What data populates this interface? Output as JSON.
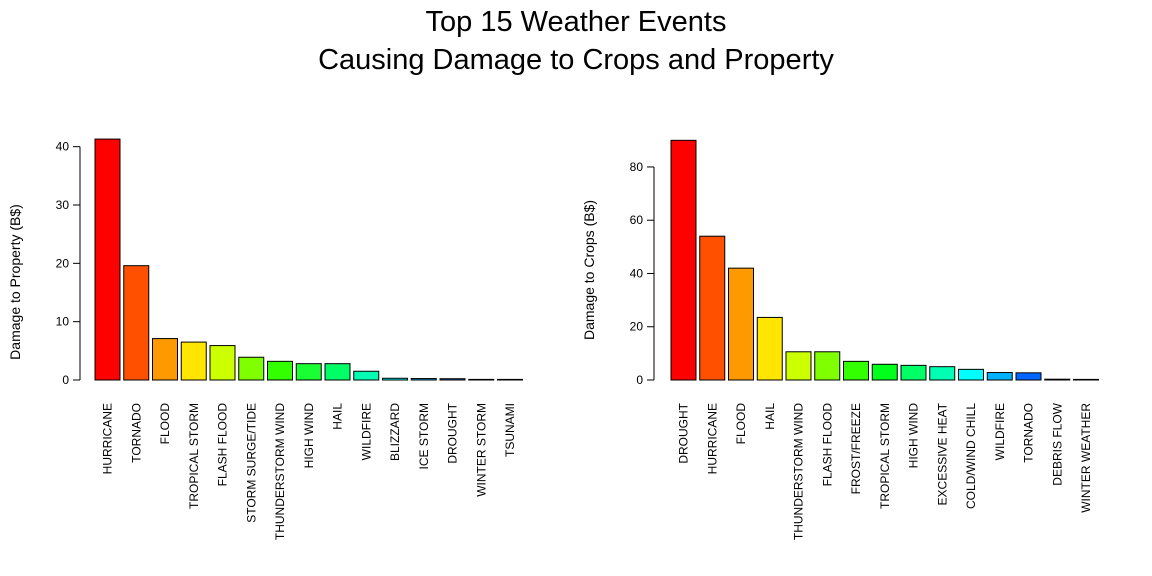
{
  "figure": {
    "title_line1": "Top 15 Weather Events",
    "title_line2": "Causing Damage to Crops and Property"
  },
  "chart_data": [
    {
      "type": "bar",
      "ylabel": "Damage to Property (B$)",
      "xlabel": "",
      "ylim": [
        0,
        42
      ],
      "yticks": [
        0,
        10,
        20,
        30,
        40
      ],
      "categories": [
        "HURRICANE",
        "TORNADO",
        "FLOOD",
        "TROPICAL STORM",
        "FLASH FLOOD",
        "STORM SURGE/TIDE",
        "THUNDERSTORM WIND",
        "HIGH WIND",
        "HAIL",
        "WILDFIRE",
        "BLIZZARD",
        "ICE STORM",
        "DROUGHT",
        "WINTER STORM",
        "TSUNAMI"
      ],
      "values": [
        41.3,
        19.6,
        7.1,
        6.5,
        5.9,
        3.9,
        3.2,
        2.8,
        2.8,
        1.5,
        0.3,
        0.25,
        0.22,
        0.1,
        0.05
      ],
      "colors": [
        "#FF0000",
        "#FF5000",
        "#FF9900",
        "#FFE500",
        "#CCFF00",
        "#80FF00",
        "#33FF00",
        "#1AFF33",
        "#00FF66",
        "#00FFB2",
        "#00FFFF",
        "#00B3FF",
        "#0066FF",
        "#001AFF",
        "#3300FF"
      ],
      "grid": false,
      "legend": "none"
    },
    {
      "type": "bar",
      "ylabel": "Damage to Crops (B$)",
      "xlabel": "",
      "ylim": [
        0,
        92
      ],
      "yticks": [
        0,
        20,
        40,
        60,
        80
      ],
      "categories": [
        "DROUGHT",
        "HURRICANE",
        "FLOOD",
        "HAIL",
        "THUNDERSTORM WIND",
        "FLASH FLOOD",
        "FROST/FREEZE",
        "TROPICAL STORM",
        "HIGH WIND",
        "EXCESSIVE HEAT",
        "COLD/WIND CHILL",
        "WILDFIRE",
        "TORNADO",
        "DEBRIS FLOW",
        "WINTER WEATHER"
      ],
      "values": [
        90.0,
        54.0,
        42.0,
        23.5,
        10.6,
        10.6,
        7.0,
        5.9,
        5.5,
        5.0,
        4.0,
        2.8,
        2.7,
        0.3,
        0.2
      ],
      "colors": [
        "#FF0000",
        "#FF5000",
        "#FF9900",
        "#FFE500",
        "#CCFF00",
        "#80FF00",
        "#33FF00",
        "#00FF1A",
        "#00FF66",
        "#00FFB2",
        "#00FFFF",
        "#00B3FF",
        "#0066FF",
        "#001AFF",
        "#3300FF"
      ],
      "grid": false,
      "legend": "none"
    }
  ]
}
